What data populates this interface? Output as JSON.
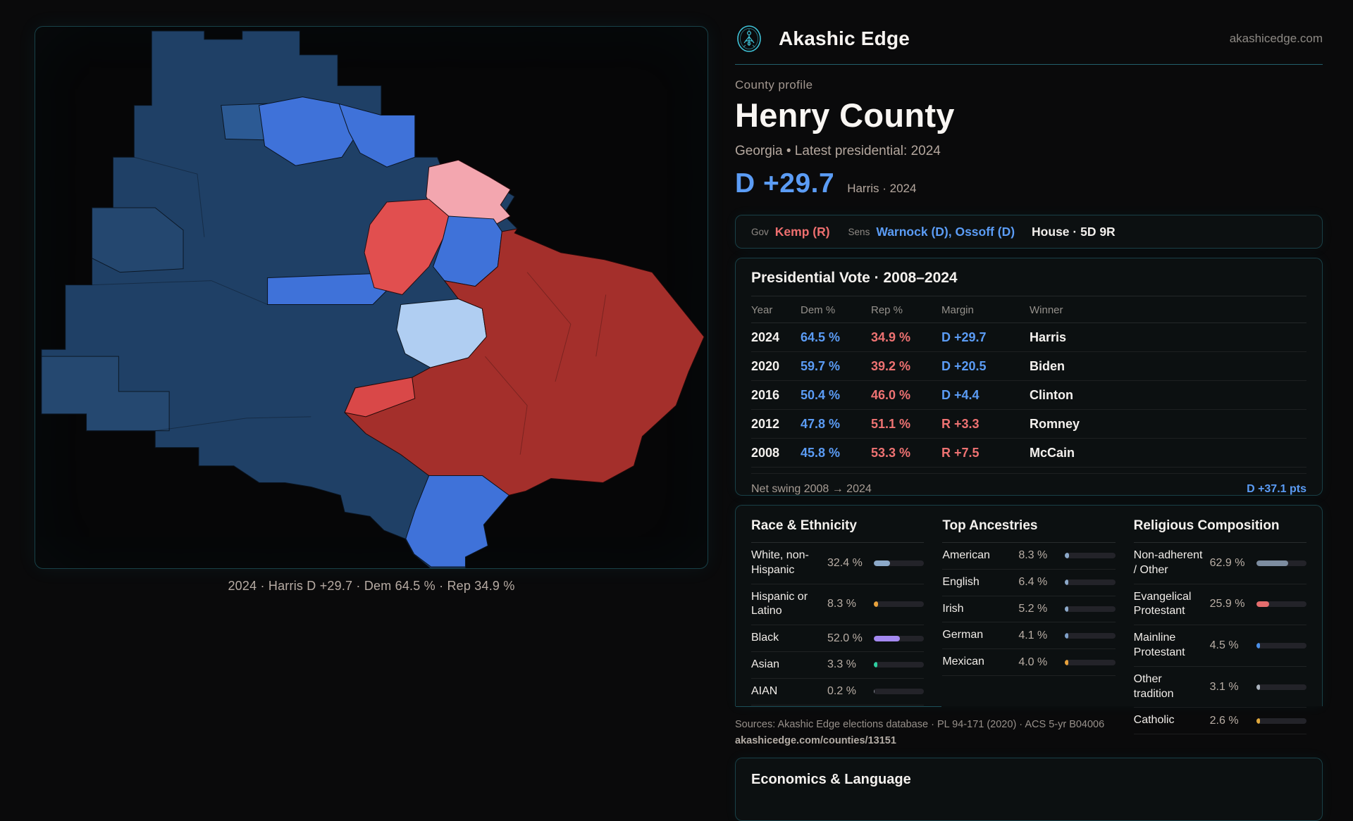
{
  "brand": {
    "name": "Akashic Edge",
    "domain": "akashicedge.com"
  },
  "profile": {
    "kicker": "County profile",
    "title": "Henry County",
    "subtitle": "Georgia • Latest presidential: 2024",
    "headline_margin": "D +29.7",
    "headline_note": "Harris · 2024"
  },
  "officials": {
    "gov_label": "Gov",
    "gov_value": "Kemp (R)",
    "sens_label": "Sens",
    "sens_value": "Warnock (D), Ossoff (D)",
    "house_value": "House · 5D 9R"
  },
  "map": {
    "caption": "2024 · Harris D +29.7 · Dem 64.5 % · Rep 34.9 %"
  },
  "presidential": {
    "title": "Presidential Vote · 2008–2024",
    "columns": [
      "Year",
      "Dem %",
      "Rep %",
      "Margin",
      "Winner"
    ],
    "rows": [
      {
        "year": "2024",
        "dem": "64.5 %",
        "rep": "34.9 %",
        "margin": "D +29.7",
        "margin_party": "D",
        "winner": "Harris"
      },
      {
        "year": "2020",
        "dem": "59.7 %",
        "rep": "39.2 %",
        "margin": "D +20.5",
        "margin_party": "D",
        "winner": "Biden"
      },
      {
        "year": "2016",
        "dem": "50.4 %",
        "rep": "46.0 %",
        "margin": "D +4.4",
        "margin_party": "D",
        "winner": "Clinton"
      },
      {
        "year": "2012",
        "dem": "47.8 %",
        "rep": "51.1 %",
        "margin": "R +3.3",
        "margin_party": "R",
        "winner": "Romney"
      },
      {
        "year": "2008",
        "dem": "45.8 %",
        "rep": "53.3 %",
        "margin": "R +7.5",
        "margin_party": "R",
        "winner": "McCain"
      }
    ],
    "net_swing_label": "Net swing 2008 → 2024",
    "net_swing_value": "D +37.1 pts"
  },
  "demographics": {
    "race": {
      "title": "Race & Ethnicity",
      "rows": [
        {
          "label": "White, non-Hispanic",
          "value": "32.4 %",
          "pct": 32.4,
          "color": "#8ca9c9"
        },
        {
          "label": "Hispanic or Latino",
          "value": "8.3 %",
          "pct": 8.3,
          "color": "#e8a23c"
        },
        {
          "label": "Black",
          "value": "52.0 %",
          "pct": 52.0,
          "color": "#a489f0"
        },
        {
          "label": "Asian",
          "value": "3.3 %",
          "pct": 3.3,
          "color": "#2ecfa0"
        },
        {
          "label": "AIAN",
          "value": "0.2 %",
          "pct": 0.2,
          "color": "#8a8f96"
        }
      ]
    },
    "ancestries": {
      "title": "Top Ancestries",
      "rows": [
        {
          "label": "American",
          "value": "8.3 %",
          "pct": 8.3,
          "color": "#8ca9c9"
        },
        {
          "label": "English",
          "value": "6.4 %",
          "pct": 6.4,
          "color": "#8ca9c9"
        },
        {
          "label": "Irish",
          "value": "5.2 %",
          "pct": 5.2,
          "color": "#8ca9c9"
        },
        {
          "label": "German",
          "value": "4.1 %",
          "pct": 4.1,
          "color": "#7fa0c8"
        },
        {
          "label": "Mexican",
          "value": "4.0 %",
          "pct": 4.0,
          "color": "#e8a23c"
        }
      ]
    },
    "religion": {
      "title": "Religious Composition",
      "rows": [
        {
          "label": "Non-adherent / Other",
          "value": "62.9 %",
          "pct": 62.9,
          "color": "#7d8da0"
        },
        {
          "label": "Evangelical Protestant",
          "value": "25.9 %",
          "pct": 25.9,
          "color": "#e56d6d"
        },
        {
          "label": "Mainline Protestant",
          "value": "4.5 %",
          "pct": 4.5,
          "color": "#4a8fe8"
        },
        {
          "label": "Other tradition",
          "value": "3.1 %",
          "pct": 3.1,
          "color": "#aab3bd"
        },
        {
          "label": "Catholic",
          "value": "2.6 %",
          "pct": 2.6,
          "color": "#e0a83c"
        }
      ]
    }
  },
  "sources": {
    "line1": "Sources: Akashic Edge elections database · PL 94-171 (2020) · ACS 5-yr B04006",
    "line2": "akashicedge.com/counties/13151"
  },
  "economics": {
    "title": "Economics & Language"
  }
}
